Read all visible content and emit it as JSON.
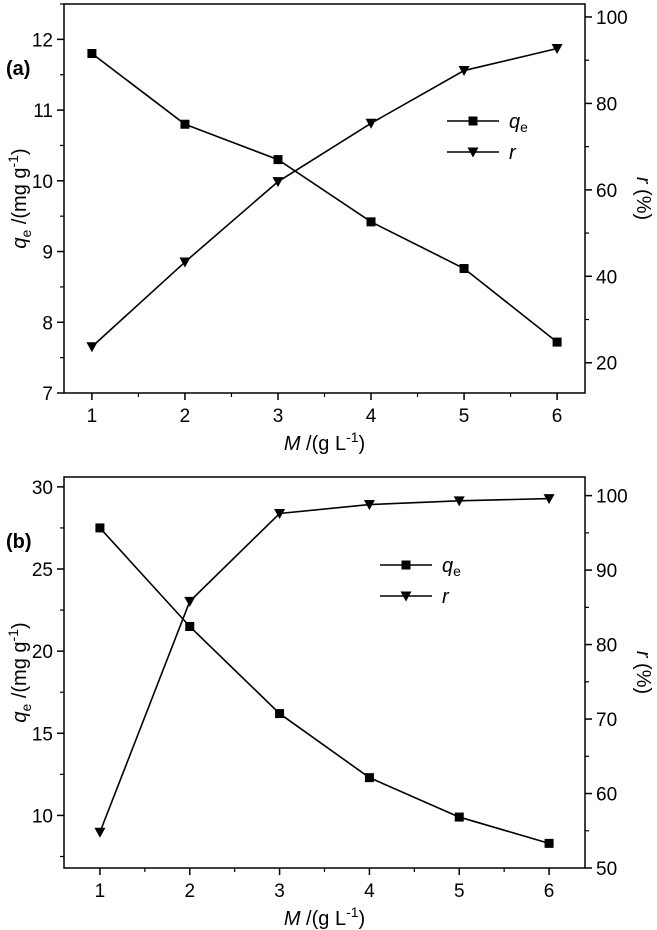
{
  "chart_data": [
    {
      "panel_label": "(a)",
      "type": "line",
      "x": [
        1,
        2,
        3,
        4,
        5,
        6
      ],
      "xlim": [
        0.7,
        6.3
      ],
      "xticks": [
        "1",
        "2",
        "3",
        "4",
        "5",
        "6"
      ],
      "xlabel": {
        "var": "M",
        "text": " /(g L",
        "sup": "-1",
        "close": ")"
      },
      "ylabel_left": {
        "var": "q",
        "sub": "e",
        "text": " /(mg g",
        "sup": "-1",
        "close": ")"
      },
      "ylabel_right": {
        "var": "r",
        "text": " (%)"
      },
      "ylim_left": [
        7,
        12.5
      ],
      "yticks_left": [
        "7",
        "8",
        "9",
        "10",
        "11",
        "12"
      ],
      "ylim_right": [
        13,
        103
      ],
      "yticks_right": [
        "20",
        "40",
        "60",
        "80",
        "100"
      ],
      "series": [
        {
          "name": "qe",
          "marker": "square",
          "axis": "left",
          "values": [
            11.8,
            10.8,
            10.3,
            9.42,
            8.76,
            7.72
          ]
        },
        {
          "name": "r",
          "marker": "triangle-down",
          "axis": "right",
          "values": [
            23.7,
            43.3,
            61.9,
            75.4,
            87.6,
            92.7
          ]
        }
      ],
      "legend": [
        {
          "var": "q",
          "sub": "e"
        },
        {
          "var": "r",
          "sub": ""
        }
      ],
      "legend_position": "center-right"
    },
    {
      "panel_label": "(b)",
      "type": "line",
      "x": [
        1,
        2,
        3,
        4,
        5,
        6
      ],
      "xlim": [
        0.6,
        6.4
      ],
      "xticks": [
        "1",
        "2",
        "3",
        "4",
        "5",
        "6"
      ],
      "xlabel": {
        "var": "M",
        "text": " /(g L",
        "sup": "-1",
        "close": ")"
      },
      "ylabel_left": {
        "var": "q",
        "sub": "e",
        "text": " /(mg g",
        "sup": "-1",
        "close": ")"
      },
      "ylabel_right": {
        "var": "r",
        "text": " (%)"
      },
      "ylim_left": [
        6.8,
        30.6
      ],
      "yticks_left": [
        "10",
        "15",
        "20",
        "25",
        "30"
      ],
      "ylim_right": [
        50,
        102.5
      ],
      "yticks_right": [
        "50",
        "60",
        "70",
        "80",
        "90",
        "100"
      ],
      "series": [
        {
          "name": "qe",
          "marker": "square",
          "axis": "left",
          "values": [
            27.5,
            21.5,
            16.2,
            12.3,
            9.9,
            8.3
          ]
        },
        {
          "name": "r",
          "marker": "triangle-down",
          "axis": "right",
          "values": [
            54.8,
            85.8,
            97.6,
            98.8,
            99.3,
            99.6
          ]
        }
      ],
      "legend": [
        {
          "var": "q",
          "sub": "e"
        },
        {
          "var": "r",
          "sub": ""
        }
      ],
      "legend_position": "center-right"
    }
  ]
}
